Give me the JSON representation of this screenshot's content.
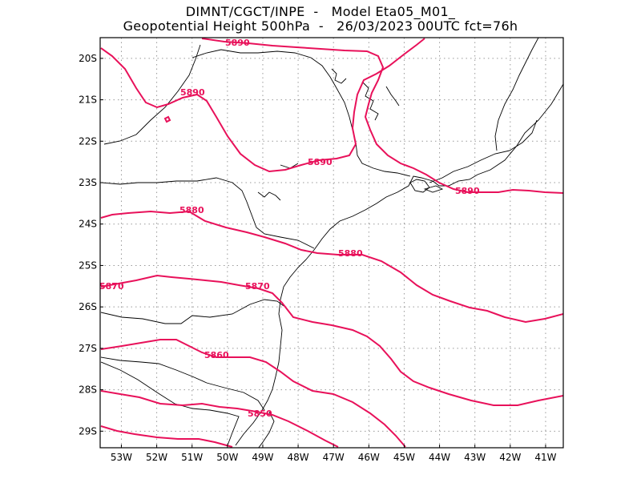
{
  "header": {
    "line1": "DIMNT/CGCT/INPE  -   Model Eta05_M01_",
    "line2": "Geopotential Height 500hPa  -   26/03/2023 00UTC fct=76h"
  },
  "map": {
    "lon_range": [
      -53.6,
      -40.5
    ],
    "lat_range": [
      -29.4,
      -19.5
    ],
    "lon_ticks": [
      "53W",
      "52W",
      "51W",
      "50W",
      "49W",
      "48W",
      "47W",
      "46W",
      "45W",
      "44W",
      "43W",
      "42W",
      "41W"
    ],
    "lat_ticks": [
      "20S",
      "21S",
      "22S",
      "23S",
      "24S",
      "25S",
      "26S",
      "27S",
      "28S",
      "29S"
    ],
    "grid": "dotted",
    "contour_color": "#e8115a",
    "coastline_color": "#000000"
  },
  "contours": [
    {
      "value": 5890,
      "label": "5890"
    },
    {
      "value": 5880,
      "label": "5880"
    },
    {
      "value": 5870,
      "label": "5870"
    },
    {
      "value": 5860,
      "label": "5860"
    },
    {
      "value": 5850,
      "label": "5850"
    }
  ],
  "contour_labels": {
    "top": "5890",
    "c5890_west": "5890",
    "c5890_center": "5890",
    "c5890_east": "5890",
    "c5880_west": "5880",
    "c5880_east": "5880",
    "c5870_west": "5870",
    "c5870_center": "5870",
    "c5860": "5860",
    "c5850": "5850"
  }
}
